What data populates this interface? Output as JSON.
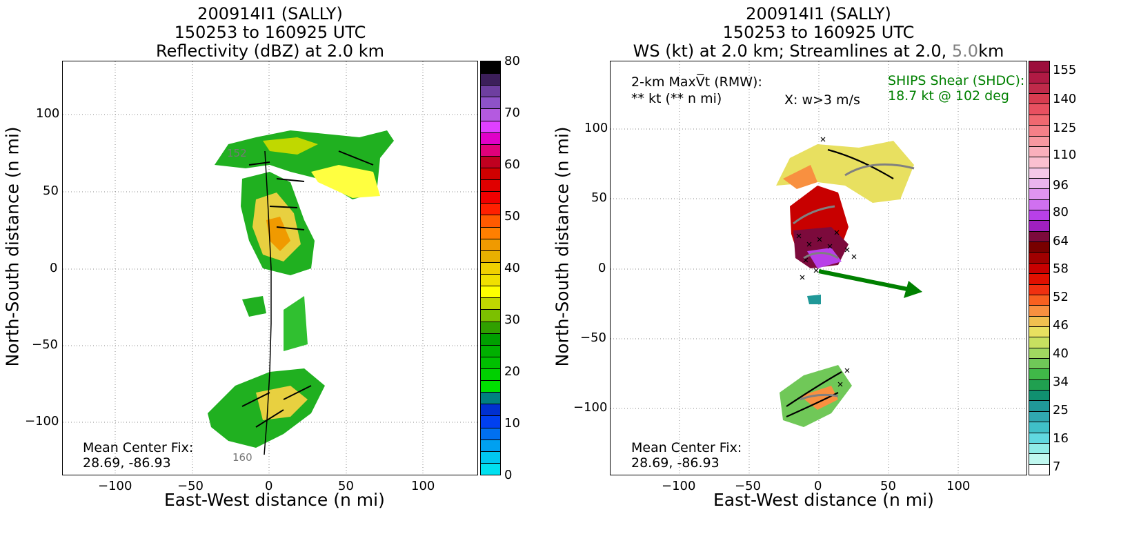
{
  "left": {
    "title_line1": "200914I1 (SALLY)",
    "title_line2": "150253 to 160925 UTC",
    "title_line3": "Reflectivity (dBZ) at 2.0 km",
    "xlabel": "East-West distance (n mi)",
    "ylabel": "North-South distance (n mi)",
    "xticks": [
      "−100",
      "−50",
      "0",
      "50",
      "100"
    ],
    "yticks": [
      "100",
      "50",
      "0",
      "−50",
      "−100"
    ],
    "center_fix_label": "Mean Center Fix:",
    "center_fix_value": "28.69, -86.93",
    "track_label_top": "152",
    "track_label_bottom": "160",
    "colorbar_labels": [
      "80",
      "70",
      "60",
      "50",
      "40",
      "30",
      "20",
      "10",
      "0"
    ],
    "colorbar_colors": [
      "#000000",
      "#3c1f5a",
      "#6e3fa0",
      "#8e52c8",
      "#b45ae0",
      "#e040ff",
      "#e000c8",
      "#e0007a",
      "#c00020",
      "#d00000",
      "#e00000",
      "#f00000",
      "#ff2000",
      "#ff5a00",
      "#ff7f00",
      "#f09a00",
      "#e8b000",
      "#f0d000",
      "#f0e000",
      "#ffff00",
      "#c0d800",
      "#7cc000",
      "#30a000",
      "#00a000",
      "#00b000",
      "#00c000",
      "#00d000",
      "#00e000",
      "#008080",
      "#0030d0",
      "#0040f0",
      "#0070f0",
      "#00a0f0",
      "#00c8f0",
      "#00e0f0"
    ]
  },
  "right": {
    "title_line1": "200914I1 (SALLY)",
    "title_line2": "150253 to 160925 UTC",
    "title_line3_prefix": "WS (kt) at 2.0 km; Streamlines at 2.0,",
    "title_line3_gray": "5.0",
    "title_line3_suffix": "km",
    "xlabel": "East-West distance (n mi)",
    "ylabel": "North-South distance (n mi)",
    "xticks": [
      "−100",
      "−50",
      "0",
      "50",
      "100"
    ],
    "yticks": [
      "100",
      "50",
      "0",
      "−50",
      "−100"
    ],
    "maxvt_label": "2-km MaxV̅t (RMW):",
    "maxvt_value": "** kt (** n mi)",
    "w_label": "X: w>3 m/s",
    "ships_label": "SHIPS Shear (SHDC):",
    "ships_value": "18.7 kt @ 102 deg",
    "center_fix_label": "Mean Center Fix:",
    "center_fix_value": "28.69, -86.93",
    "colorbar_labels": [
      "155",
      "140",
      "125",
      "110",
      "96",
      "80",
      "64",
      "58",
      "52",
      "46",
      "40",
      "34",
      "25",
      "16",
      "7"
    ],
    "colorbar_colors": [
      "#9c0e3c",
      "#b01a44",
      "#c02a4a",
      "#d83c50",
      "#e85060",
      "#f06870",
      "#f58088",
      "#f898a0",
      "#fab0bc",
      "#fac0d0",
      "#f4c8e8",
      "#eab4ee",
      "#e094f0",
      "#d070f0",
      "#b840e8",
      "#a020c0",
      "#7c0a3c",
      "#780000",
      "#a00000",
      "#c80000",
      "#e01000",
      "#f03010",
      "#f86020",
      "#f89040",
      "#f0c050",
      "#e8e060",
      "#c8e060",
      "#a0d860",
      "#70c858",
      "#40b848",
      "#20a050",
      "#109070",
      "#209898",
      "#30a8b0",
      "#40c0c8",
      "#60d8e0",
      "#90ece8",
      "#c0f8f0",
      "#ffffff"
    ],
    "accent_green": "#008000"
  }
}
